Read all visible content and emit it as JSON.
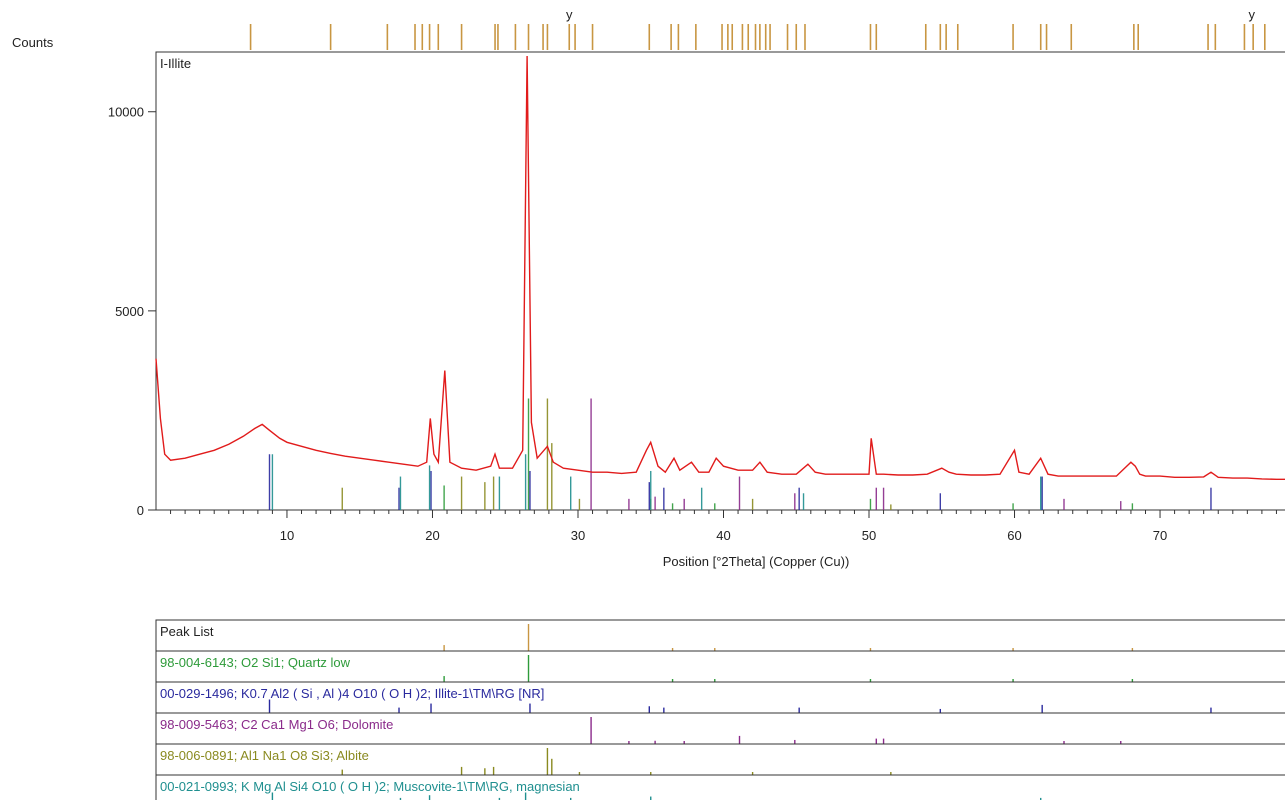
{
  "chart_data": {
    "type": "line",
    "ylabel": "Counts",
    "xlabel": "Position [°2Theta] (Copper (Cu))",
    "series_label": "I-Illite",
    "xlim": [
      1,
      79
    ],
    "ylim": [
      0,
      11500
    ],
    "x_ticks": [
      10,
      20,
      30,
      40,
      50,
      60,
      70
    ],
    "y_ticks": [
      0,
      5000,
      10000
    ],
    "grid": false,
    "pattern": [
      [
        1,
        3800
      ],
      [
        1.3,
        2300
      ],
      [
        1.6,
        1400
      ],
      [
        2,
        1250
      ],
      [
        3,
        1300
      ],
      [
        4,
        1400
      ],
      [
        5,
        1500
      ],
      [
        6,
        1650
      ],
      [
        7,
        1850
      ],
      [
        7.8,
        2050
      ],
      [
        8.3,
        2150
      ],
      [
        8.8,
        2000
      ],
      [
        9.5,
        1800
      ],
      [
        10,
        1700
      ],
      [
        11,
        1600
      ],
      [
        12,
        1500
      ],
      [
        13,
        1420
      ],
      [
        14,
        1350
      ],
      [
        15,
        1300
      ],
      [
        16,
        1250
      ],
      [
        17,
        1200
      ],
      [
        18,
        1150
      ],
      [
        19,
        1100
      ],
      [
        19.6,
        1200
      ],
      [
        19.85,
        2300
      ],
      [
        20.1,
        1400
      ],
      [
        20.4,
        1200
      ],
      [
        20.85,
        3500
      ],
      [
        21.2,
        1200
      ],
      [
        22,
        1050
      ],
      [
        23,
        1000
      ],
      [
        24,
        1100
      ],
      [
        24.3,
        1400
      ],
      [
        24.6,
        1050
      ],
      [
        25.5,
        1050
      ],
      [
        26.2,
        1500
      ],
      [
        26.5,
        11400
      ],
      [
        26.8,
        2200
      ],
      [
        27.2,
        1300
      ],
      [
        27.9,
        1600
      ],
      [
        28.3,
        1200
      ],
      [
        29,
        1050
      ],
      [
        30,
        1000
      ],
      [
        31,
        950
      ],
      [
        32,
        950
      ],
      [
        33,
        920
      ],
      [
        34,
        950
      ],
      [
        34.7,
        1500
      ],
      [
        35,
        1700
      ],
      [
        35.5,
        1100
      ],
      [
        36,
        950
      ],
      [
        36.6,
        1300
      ],
      [
        37,
        1000
      ],
      [
        37.8,
        1200
      ],
      [
        38.3,
        950
      ],
      [
        39,
        950
      ],
      [
        39.5,
        1300
      ],
      [
        40,
        1100
      ],
      [
        41,
        1000
      ],
      [
        42,
        1000
      ],
      [
        42.5,
        1200
      ],
      [
        43,
        950
      ],
      [
        44,
        900
      ],
      [
        45,
        900
      ],
      [
        45.8,
        1150
      ],
      [
        46.3,
        950
      ],
      [
        47,
        900
      ],
      [
        48,
        900
      ],
      [
        49,
        900
      ],
      [
        50,
        900
      ],
      [
        50.15,
        1800
      ],
      [
        50.5,
        900
      ],
      [
        51,
        900
      ],
      [
        52,
        880
      ],
      [
        53,
        880
      ],
      [
        54,
        900
      ],
      [
        55,
        1050
      ],
      [
        55.5,
        950
      ],
      [
        56,
        900
      ],
      [
        57,
        880
      ],
      [
        58,
        880
      ],
      [
        59,
        900
      ],
      [
        60,
        1500
      ],
      [
        60.3,
        950
      ],
      [
        61,
        900
      ],
      [
        61.8,
        1300
      ],
      [
        62.3,
        900
      ],
      [
        63,
        850
      ],
      [
        64,
        850
      ],
      [
        65,
        850
      ],
      [
        66,
        850
      ],
      [
        67,
        850
      ],
      [
        68,
        1200
      ],
      [
        68.3,
        1100
      ],
      [
        68.6,
        900
      ],
      [
        69,
        850
      ],
      [
        70,
        850
      ],
      [
        71,
        820
      ],
      [
        72,
        820
      ],
      [
        73,
        830
      ],
      [
        73.5,
        950
      ],
      [
        74,
        820
      ],
      [
        75,
        800
      ],
      [
        76,
        800
      ],
      [
        77,
        780
      ],
      [
        78,
        770
      ],
      [
        79,
        770
      ]
    ],
    "reference_sticks": [
      {
        "name": "98-004-6143; O2 Si1; Quartz low",
        "color": "#2e9b3a",
        "lines": [
          [
            20.8,
            0.22
          ],
          [
            26.6,
            1.0
          ],
          [
            36.5,
            0.06
          ],
          [
            39.4,
            0.06
          ],
          [
            50.1,
            0.1
          ],
          [
            59.9,
            0.06
          ],
          [
            68.1,
            0.06
          ]
        ]
      },
      {
        "name": "00-029-1496; K0.7 Al2 ( Si , Al )4 O10 ( O H )2; Illite-1\\TM\\RG [NR]",
        "color": "#2a2a9e",
        "lines": [
          [
            8.8,
            0.5
          ],
          [
            17.7,
            0.2
          ],
          [
            19.9,
            0.35
          ],
          [
            26.7,
            0.35
          ],
          [
            34.9,
            0.25
          ],
          [
            35.9,
            0.2
          ],
          [
            45.2,
            0.2
          ],
          [
            54.9,
            0.15
          ],
          [
            61.9,
            0.3
          ],
          [
            73.5,
            0.2
          ]
        ]
      },
      {
        "name": "98-009-5463; C2 Ca1 Mg1 O6; Dolomite",
        "color": "#8a2a8a",
        "lines": [
          [
            30.9,
            1.0
          ],
          [
            33.5,
            0.1
          ],
          [
            35.3,
            0.12
          ],
          [
            37.3,
            0.1
          ],
          [
            41.1,
            0.3
          ],
          [
            44.9,
            0.15
          ],
          [
            50.5,
            0.2
          ],
          [
            51.0,
            0.2
          ],
          [
            63.4,
            0.1
          ],
          [
            67.3,
            0.08
          ]
        ]
      },
      {
        "name": "98-006-0891; Al1 Na1 O8 Si3; Albite",
        "color": "#8a8a20",
        "lines": [
          [
            13.8,
            0.2
          ],
          [
            22.0,
            0.3
          ],
          [
            23.6,
            0.25
          ],
          [
            24.2,
            0.3
          ],
          [
            27.9,
            1.0
          ],
          [
            28.2,
            0.6
          ],
          [
            30.1,
            0.1
          ],
          [
            35.0,
            0.1
          ],
          [
            42.0,
            0.1
          ],
          [
            51.5,
            0.05
          ]
        ]
      },
      {
        "name": "00-021-0993; K Mg Al Si4 O10 ( O H )2; Muscovite-1\\TM\\RG, magnesian",
        "color": "#1f8f8f",
        "lines": [
          [
            9.0,
            0.5
          ],
          [
            17.8,
            0.3
          ],
          [
            19.8,
            0.4
          ],
          [
            24.6,
            0.3
          ],
          [
            26.4,
            0.5
          ],
          [
            29.5,
            0.3
          ],
          [
            35.0,
            0.35
          ],
          [
            38.5,
            0.2
          ],
          [
            45.5,
            0.15
          ],
          [
            61.8,
            0.3
          ]
        ]
      }
    ]
  },
  "top_markers": {
    "label_a": "y",
    "label_b": "y",
    "positions": [
      7.5,
      13,
      16.9,
      18.8,
      19.3,
      19.8,
      20.4,
      22.0,
      24.3,
      24.5,
      25.7,
      26.6,
      27.6,
      27.9,
      29.4,
      29.8,
      31.0,
      34.9,
      36.4,
      36.9,
      38.1,
      39.9,
      40.3,
      40.6,
      41.3,
      41.7,
      42.2,
      42.5,
      42.9,
      43.2,
      44.4,
      45.0,
      45.6,
      50.1,
      50.5,
      53.9,
      54.9,
      55.3,
      56.1,
      59.9,
      61.8,
      62.2,
      63.9,
      68.2,
      68.5,
      73.3,
      73.8,
      75.8,
      76.4,
      77.2
    ],
    "y_marks": [
      29.4,
      76.3
    ]
  },
  "peak_list_label": "Peak List",
  "colors": {
    "pattern": "#e11b1b",
    "marker": "#c89642",
    "axis": "#333333"
  }
}
